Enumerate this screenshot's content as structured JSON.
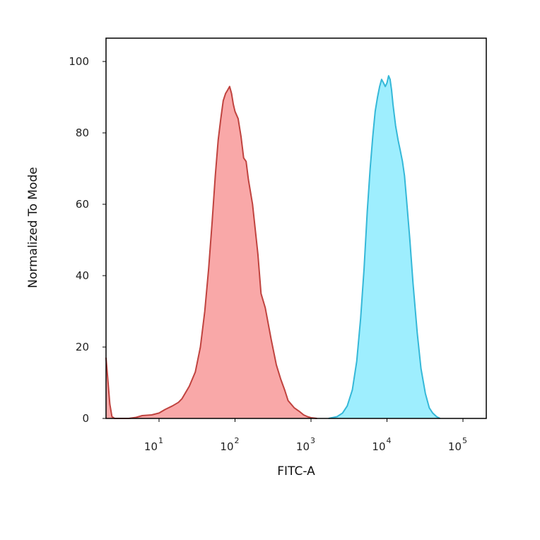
{
  "chart_data": {
    "type": "area",
    "xlabel": "FITC-A",
    "ylabel": "Normalized To Mode",
    "x_scale": "log",
    "xlim": [
      2,
      100000
    ],
    "ylim": [
      0,
      105
    ],
    "grid": false,
    "legend": "none",
    "y_ticks": [
      {
        "value": 0,
        "label": "0"
      },
      {
        "value": 20,
        "label": "20"
      },
      {
        "value": 40,
        "label": "40"
      },
      {
        "value": 60,
        "label": "60"
      },
      {
        "value": 80,
        "label": "80"
      },
      {
        "value": 100,
        "label": "100"
      }
    ],
    "x_ticks": [
      {
        "value": 10,
        "base": "10",
        "exp": "1"
      },
      {
        "value": 100,
        "base": "10",
        "exp": "2"
      },
      {
        "value": 1000,
        "base": "10",
        "exp": "3"
      },
      {
        "value": 10000,
        "base": "10",
        "exp": "4"
      },
      {
        "value": 100000,
        "base": "10",
        "exp": "5"
      }
    ],
    "series": [
      {
        "fill": "#f9a8a8",
        "stroke": "#c0433f",
        "points": [
          [
            2.0,
            17
          ],
          [
            2.1,
            12
          ],
          [
            2.25,
            4
          ],
          [
            2.4,
            0.5
          ],
          [
            2.6,
            0
          ],
          [
            4,
            0
          ],
          [
            5,
            0.3
          ],
          [
            6,
            0.8
          ],
          [
            8,
            1
          ],
          [
            10,
            1.5
          ],
          [
            12,
            2.5
          ],
          [
            15,
            3.5
          ],
          [
            18,
            4.5
          ],
          [
            20,
            5.5
          ],
          [
            25,
            9
          ],
          [
            30,
            13
          ],
          [
            35,
            20
          ],
          [
            40,
            30
          ],
          [
            45,
            42
          ],
          [
            50,
            55
          ],
          [
            55,
            68
          ],
          [
            60,
            78
          ],
          [
            65,
            84
          ],
          [
            70,
            89
          ],
          [
            75,
            91
          ],
          [
            80,
            92
          ],
          [
            85,
            93
          ],
          [
            90,
            91
          ],
          [
            95,
            88
          ],
          [
            100,
            86
          ],
          [
            110,
            84
          ],
          [
            120,
            79
          ],
          [
            130,
            73
          ],
          [
            140,
            72
          ],
          [
            150,
            67
          ],
          [
            170,
            60
          ],
          [
            200,
            46
          ],
          [
            220,
            35
          ],
          [
            250,
            31
          ],
          [
            300,
            22
          ],
          [
            350,
            15
          ],
          [
            400,
            11
          ],
          [
            450,
            8
          ],
          [
            500,
            5
          ],
          [
            600,
            3
          ],
          [
            700,
            2
          ],
          [
            800,
            1
          ],
          [
            900,
            0.5
          ],
          [
            1000,
            0.2
          ],
          [
            1200,
            0
          ]
        ]
      },
      {
        "fill": "#9eeefe",
        "stroke": "#35b8d8",
        "points": [
          [
            1700,
            0
          ],
          [
            2200,
            0.5
          ],
          [
            2600,
            1.5
          ],
          [
            3000,
            3.5
          ],
          [
            3500,
            8
          ],
          [
            4000,
            16
          ],
          [
            4500,
            28
          ],
          [
            5000,
            42
          ],
          [
            5500,
            58
          ],
          [
            6000,
            70
          ],
          [
            6500,
            79
          ],
          [
            7000,
            86
          ],
          [
            7500,
            90
          ],
          [
            8000,
            93
          ],
          [
            8500,
            95
          ],
          [
            9000,
            94
          ],
          [
            9500,
            93
          ],
          [
            10000,
            94
          ],
          [
            10500,
            96
          ],
          [
            11000,
            95
          ],
          [
            11500,
            92
          ],
          [
            12000,
            88
          ],
          [
            13000,
            82
          ],
          [
            14000,
            78
          ],
          [
            15000,
            75
          ],
          [
            16000,
            72
          ],
          [
            17000,
            68
          ],
          [
            18000,
            62
          ],
          [
            20000,
            50
          ],
          [
            22000,
            38
          ],
          [
            25000,
            24
          ],
          [
            28000,
            14
          ],
          [
            32000,
            7
          ],
          [
            36000,
            3
          ],
          [
            40000,
            1.5
          ],
          [
            45000,
            0.5
          ],
          [
            50000,
            0
          ]
        ]
      }
    ]
  }
}
